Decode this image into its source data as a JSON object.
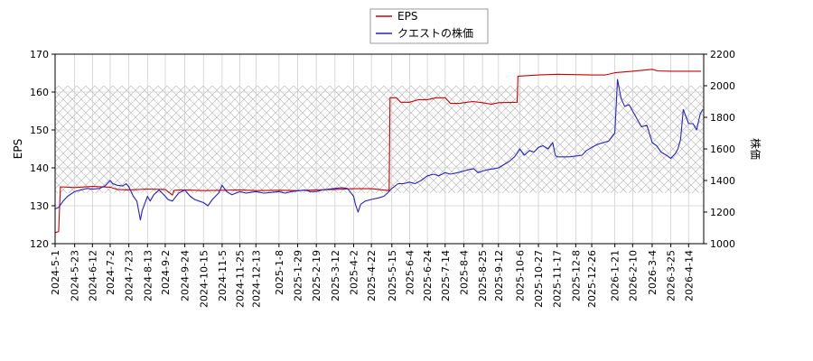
{
  "chart_data": {
    "type": "line",
    "legend": {
      "placement": "top-center",
      "entries": [
        "EPS",
        "クエストの株価"
      ]
    },
    "xlabel": "",
    "ylabel": "EPS",
    "y2label": "株価",
    "ylim": [
      120,
      170
    ],
    "y2lim": [
      1000,
      2200
    ],
    "yticks": [
      120,
      130,
      140,
      150,
      160,
      170
    ],
    "y2ticks": [
      1000,
      1200,
      1400,
      1600,
      1800,
      2000,
      2200
    ],
    "xlim": [
      "2024-05-01",
      "2026-05-01"
    ],
    "xticks": [
      "2024-5-1",
      "2024-5-23",
      "2024-6-12",
      "2024-7-2",
      "2024-7-23",
      "2024-8-13",
      "2024-9-2",
      "2024-9-24",
      "2024-10-15",
      "2024-11-5",
      "2024-11-25",
      "2024-12-13",
      "2025-1-8",
      "2025-1-29",
      "2025-2-19",
      "2025-3-12",
      "2025-4-2",
      "2025-4-22",
      "2025-5-15",
      "2025-6-4",
      "2025-6-24",
      "2025-7-14",
      "2025-8-4",
      "2025-8-25",
      "2025-9-12",
      "2025-10-6",
      "2025-10-27",
      "2025-11-17",
      "2025-12-8",
      "2025-12-26",
      "2026-1-21",
      "2026-2-10",
      "2026-3-4",
      "2026-3-25",
      "2026-4-14"
    ],
    "grid": true,
    "hatched_band": {
      "axis": "y2",
      "range": [
        1320,
        2000
      ]
    },
    "series": [
      {
        "name": "EPS",
        "axis": "y",
        "color": "#cc0000",
        "points": [
          [
            "2024-05-01",
            122.9
          ],
          [
            "2024-05-05",
            123.2
          ],
          [
            "2024-05-07",
            135.0
          ],
          [
            "2024-05-23",
            134.8
          ],
          [
            "2024-06-12",
            135.1
          ],
          [
            "2024-07-02",
            134.9
          ],
          [
            "2024-07-10",
            134.3
          ],
          [
            "2024-07-23",
            134.2
          ],
          [
            "2024-08-13",
            134.4
          ],
          [
            "2024-09-02",
            134.3
          ],
          [
            "2024-09-10",
            132.8
          ],
          [
            "2024-09-12",
            134.1
          ],
          [
            "2024-09-24",
            134.2
          ],
          [
            "2024-10-15",
            134.0
          ],
          [
            "2024-11-05",
            134.1
          ],
          [
            "2024-11-25",
            134.2
          ],
          [
            "2024-12-13",
            134.0
          ],
          [
            "2025-01-08",
            134.1
          ],
          [
            "2025-01-29",
            134.0
          ],
          [
            "2025-02-19",
            134.2
          ],
          [
            "2025-03-12",
            134.3
          ],
          [
            "2025-04-02",
            134.5
          ],
          [
            "2025-04-22",
            134.5
          ],
          [
            "2025-05-12",
            134.0
          ],
          [
            "2025-05-13",
            158.5
          ],
          [
            "2025-05-20",
            158.5
          ],
          [
            "2025-05-25",
            157.3
          ],
          [
            "2025-06-04",
            157.3
          ],
          [
            "2025-06-14",
            158.0
          ],
          [
            "2025-06-24",
            158.0
          ],
          [
            "2025-07-04",
            158.5
          ],
          [
            "2025-07-14",
            158.5
          ],
          [
            "2025-07-20",
            157.0
          ],
          [
            "2025-07-30",
            157.0
          ],
          [
            "2025-08-04",
            157.2
          ],
          [
            "2025-08-14",
            157.5
          ],
          [
            "2025-08-25",
            157.2
          ],
          [
            "2025-09-04",
            156.8
          ],
          [
            "2025-09-12",
            157.2
          ],
          [
            "2025-10-03",
            157.3
          ],
          [
            "2025-10-04",
            164.2
          ],
          [
            "2025-10-27",
            164.5
          ],
          [
            "2025-11-17",
            164.7
          ],
          [
            "2025-12-08",
            164.6
          ],
          [
            "2025-12-26",
            164.5
          ],
          [
            "2026-01-10",
            164.5
          ],
          [
            "2026-01-21",
            165.1
          ],
          [
            "2026-02-10",
            165.5
          ],
          [
            "2026-03-04",
            166.0
          ],
          [
            "2026-03-10",
            165.6
          ],
          [
            "2026-03-25",
            165.5
          ],
          [
            "2026-04-14",
            165.5
          ],
          [
            "2026-04-28",
            165.5
          ]
        ]
      },
      {
        "name": "クエストの株価",
        "axis": "y2",
        "color": "#2222cc",
        "points": [
          [
            "2024-05-01",
            1220
          ],
          [
            "2024-05-05",
            1230
          ],
          [
            "2024-05-10",
            1270
          ],
          [
            "2024-05-15",
            1300
          ],
          [
            "2024-05-23",
            1330
          ],
          [
            "2024-05-30",
            1340
          ],
          [
            "2024-06-06",
            1350
          ],
          [
            "2024-06-12",
            1345
          ],
          [
            "2024-06-20",
            1350
          ],
          [
            "2024-06-26",
            1365
          ],
          [
            "2024-07-02",
            1400
          ],
          [
            "2024-07-05",
            1380
          ],
          [
            "2024-07-10",
            1370
          ],
          [
            "2024-07-16",
            1365
          ],
          [
            "2024-07-20",
            1380
          ],
          [
            "2024-07-23",
            1360
          ],
          [
            "2024-07-28",
            1300
          ],
          [
            "2024-08-01",
            1270
          ],
          [
            "2024-08-05",
            1150
          ],
          [
            "2024-08-07",
            1210
          ],
          [
            "2024-08-13",
            1300
          ],
          [
            "2024-08-16",
            1270
          ],
          [
            "2024-08-20",
            1310
          ],
          [
            "2024-08-26",
            1340
          ],
          [
            "2024-09-02",
            1300
          ],
          [
            "2024-09-05",
            1280
          ],
          [
            "2024-09-10",
            1270
          ],
          [
            "2024-09-17",
            1320
          ],
          [
            "2024-09-24",
            1340
          ],
          [
            "2024-09-30",
            1300
          ],
          [
            "2024-10-05",
            1280
          ],
          [
            "2024-10-10",
            1270
          ],
          [
            "2024-10-15",
            1260
          ],
          [
            "2024-10-20",
            1240
          ],
          [
            "2024-10-25",
            1280
          ],
          [
            "2024-11-01",
            1320
          ],
          [
            "2024-11-05",
            1370
          ],
          [
            "2024-11-10",
            1330
          ],
          [
            "2024-11-16",
            1310
          ],
          [
            "2024-11-25",
            1330
          ],
          [
            "2024-12-02",
            1320
          ],
          [
            "2024-12-13",
            1330
          ],
          [
            "2024-12-22",
            1320
          ],
          [
            "2025-01-01",
            1325
          ],
          [
            "2025-01-08",
            1330
          ],
          [
            "2025-01-15",
            1320
          ],
          [
            "2025-01-22",
            1330
          ],
          [
            "2025-01-29",
            1335
          ],
          [
            "2025-02-06",
            1340
          ],
          [
            "2025-02-12",
            1330
          ],
          [
            "2025-02-19",
            1330
          ],
          [
            "2025-02-26",
            1340
          ],
          [
            "2025-03-05",
            1345
          ],
          [
            "2025-03-12",
            1350
          ],
          [
            "2025-03-20",
            1355
          ],
          [
            "2025-03-26",
            1350
          ],
          [
            "2025-04-02",
            1300
          ],
          [
            "2025-04-04",
            1250
          ],
          [
            "2025-04-07",
            1200
          ],
          [
            "2025-04-10",
            1250
          ],
          [
            "2025-04-15",
            1270
          ],
          [
            "2025-04-22",
            1280
          ],
          [
            "2025-04-30",
            1290
          ],
          [
            "2025-05-06",
            1300
          ],
          [
            "2025-05-10",
            1320
          ],
          [
            "2025-05-15",
            1350
          ],
          [
            "2025-05-22",
            1380
          ],
          [
            "2025-05-28",
            1380
          ],
          [
            "2025-06-04",
            1390
          ],
          [
            "2025-06-10",
            1380
          ],
          [
            "2025-06-17",
            1400
          ],
          [
            "2025-06-24",
            1430
          ],
          [
            "2025-07-01",
            1440
          ],
          [
            "2025-07-07",
            1430
          ],
          [
            "2025-07-14",
            1450
          ],
          [
            "2025-07-20",
            1440
          ],
          [
            "2025-07-28",
            1450
          ],
          [
            "2025-08-04",
            1460
          ],
          [
            "2025-08-10",
            1470
          ],
          [
            "2025-08-15",
            1475
          ],
          [
            "2025-08-20",
            1450
          ],
          [
            "2025-08-25",
            1460
          ],
          [
            "2025-09-01",
            1470
          ],
          [
            "2025-09-07",
            1475
          ],
          [
            "2025-09-12",
            1480
          ],
          [
            "2025-09-18",
            1500
          ],
          [
            "2025-09-24",
            1520
          ],
          [
            "2025-09-30",
            1550
          ],
          [
            "2025-10-04",
            1580
          ],
          [
            "2025-10-06",
            1600
          ],
          [
            "2025-10-11",
            1560
          ],
          [
            "2025-10-17",
            1590
          ],
          [
            "2025-10-22",
            1580
          ],
          [
            "2025-10-27",
            1610
          ],
          [
            "2025-11-01",
            1620
          ],
          [
            "2025-11-07",
            1600
          ],
          [
            "2025-11-12",
            1640
          ],
          [
            "2025-11-15",
            1560
          ],
          [
            "2025-11-17",
            1550
          ],
          [
            "2025-11-24",
            1550
          ],
          [
            "2025-12-01",
            1550
          ],
          [
            "2025-12-08",
            1555
          ],
          [
            "2025-12-15",
            1560
          ],
          [
            "2025-12-20",
            1590
          ],
          [
            "2025-12-26",
            1610
          ],
          [
            "2026-01-02",
            1630
          ],
          [
            "2026-01-08",
            1640
          ],
          [
            "2026-01-14",
            1650
          ],
          [
            "2026-01-18",
            1680
          ],
          [
            "2026-01-21",
            1700
          ],
          [
            "2026-01-24",
            2040
          ],
          [
            "2026-01-28",
            1920
          ],
          [
            "2026-02-01",
            1870
          ],
          [
            "2026-02-06",
            1880
          ],
          [
            "2026-02-10",
            1840
          ],
          [
            "2026-02-16",
            1780
          ],
          [
            "2026-02-20",
            1740
          ],
          [
            "2026-02-26",
            1750
          ],
          [
            "2026-03-04",
            1640
          ],
          [
            "2026-03-09",
            1620
          ],
          [
            "2026-03-14",
            1580
          ],
          [
            "2026-03-20",
            1560
          ],
          [
            "2026-03-25",
            1540
          ],
          [
            "2026-03-30",
            1570
          ],
          [
            "2026-04-02",
            1600
          ],
          [
            "2026-04-05",
            1660
          ],
          [
            "2026-04-08",
            1850
          ],
          [
            "2026-04-14",
            1760
          ],
          [
            "2026-04-19",
            1760
          ],
          [
            "2026-04-23",
            1720
          ],
          [
            "2026-04-27",
            1820
          ],
          [
            "2026-04-30",
            1850
          ]
        ]
      }
    ]
  }
}
